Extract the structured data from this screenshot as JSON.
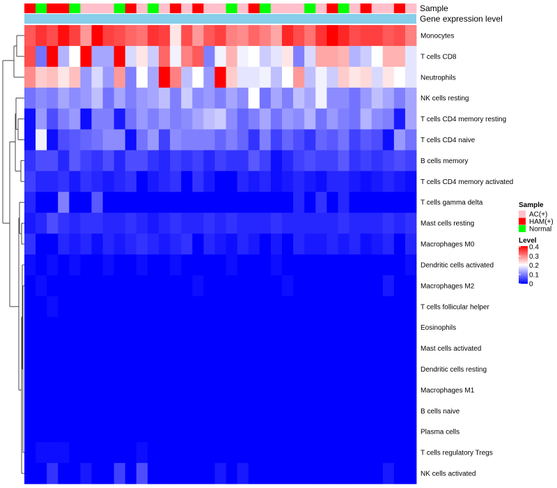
{
  "chart_data": {
    "type": "heatmap",
    "title": "",
    "annotation_rows": [
      "Sample",
      "Gene expression level"
    ],
    "rows": [
      "Monocytes",
      "T cells CD8",
      "Neutrophils",
      "NK cells resting",
      "T cells CD4 memory resting",
      "T cells CD4 naive",
      "B cells memory",
      "T cells CD4 memory activated",
      "T cells gamma delta",
      "Mast cells resting",
      "Macrophages M0",
      "Dendritic cells activated",
      "Macrophages M2",
      "T cells follicular helper",
      "Eosinophils",
      "Mast cells activated",
      "Dendritic cells resting",
      "Macrophages M1",
      "B cells naive",
      "Plasma cells",
      "T cells regulatory  Tregs",
      "NK cells activated"
    ],
    "sample_groups": [
      "HAM(+)",
      "Normal",
      "HAM(+)",
      "HAM(+)",
      "Normal",
      "AC(+)",
      "AC(+)",
      "AC(+)",
      "Normal",
      "HAM(+)",
      "AC(+)",
      "Normal",
      "AC(+)",
      "HAM(+)",
      "AC(+)",
      "HAM(+)",
      "AC(+)",
      "AC(+)",
      "Normal",
      "AC(+)",
      "HAM(+)",
      "Normal",
      "AC(+)",
      "AC(+)",
      "AC(+)",
      "Normal",
      "AC(+)",
      "HAM(+)",
      "Normal",
      "AC(+)",
      "HAM(+)",
      "AC(+)",
      "AC(+)",
      "HAM(+)",
      "AC(+)"
    ],
    "values": [
      [
        0.33,
        0.36,
        0.34,
        0.39,
        0.35,
        0.28,
        0.4,
        0.35,
        0.34,
        0.32,
        0.31,
        0.36,
        0.35,
        0.22,
        0.34,
        0.28,
        0.33,
        0.35,
        0.3,
        0.29,
        0.32,
        0.3,
        0.27,
        0.37,
        0.34,
        0.31,
        0.36,
        0.4,
        0.37,
        0.34,
        0.35,
        0.35,
        0.33,
        0.34,
        0.3
      ],
      [
        0.34,
        0.09,
        0.4,
        0.14,
        0.2,
        0.4,
        0.13,
        0.13,
        0.4,
        0.17,
        0.22,
        0.16,
        0.32,
        0.19,
        0.3,
        0.33,
        0.1,
        0.19,
        0.26,
        0.19,
        0.2,
        0.16,
        0.18,
        0.22,
        0.1,
        0.17,
        0.27,
        0.27,
        0.26,
        0.14,
        0.16,
        0.2,
        0.26,
        0.26,
        0.18
      ],
      [
        0.29,
        0.24,
        0.25,
        0.22,
        0.25,
        0.12,
        0.17,
        0.12,
        0.28,
        0.1,
        0.2,
        0.13,
        0.4,
        0.3,
        0.15,
        0.2,
        0.12,
        0.4,
        0.24,
        0.18,
        0.18,
        0.19,
        0.15,
        0.2,
        0.28,
        0.15,
        0.19,
        0.16,
        0.24,
        0.22,
        0.23,
        0.17,
        0.22,
        0.2,
        0.18
      ],
      [
        0.09,
        0.11,
        0.1,
        0.13,
        0.11,
        0.12,
        0.15,
        0.09,
        0.13,
        0.1,
        0.12,
        0.13,
        0.15,
        0.1,
        0.16,
        0.11,
        0.12,
        0.1,
        0.13,
        0.11,
        0.2,
        0.09,
        0.13,
        0.1,
        0.15,
        0.13,
        0.19,
        0.11,
        0.11,
        0.09,
        0.12,
        0.15,
        0.13,
        0.1,
        0.13
      ],
      [
        0.01,
        0.12,
        0.06,
        0.1,
        0.12,
        0.01,
        0.1,
        0.1,
        0.02,
        0.09,
        0.12,
        0.1,
        0.12,
        0.1,
        0.11,
        0.13,
        0.15,
        0.16,
        0.11,
        0.08,
        0.1,
        0.13,
        0.09,
        0.12,
        0.11,
        0.14,
        0.09,
        0.12,
        0.1,
        0.09,
        0.14,
        0.11,
        0.1,
        0.02,
        0.13
      ],
      [
        0.01,
        0.19,
        0.01,
        0.06,
        0.07,
        0.08,
        0.09,
        0.11,
        0.11,
        0.01,
        0.09,
        0.12,
        0.05,
        0.11,
        0.1,
        0.1,
        0.1,
        0.08,
        0.1,
        0.08,
        0.04,
        0.1,
        0.05,
        0.08,
        0.06,
        0.04,
        0.08,
        0.07,
        0.09,
        0.05,
        0.07,
        0.06,
        0.01,
        0.12,
        0.09
      ],
      [
        0.04,
        0.06,
        0.06,
        0.03,
        0.07,
        0.05,
        0.04,
        0.06,
        0.03,
        0.06,
        0.06,
        0.04,
        0.03,
        0.05,
        0.04,
        0.05,
        0.03,
        0.05,
        0.04,
        0.04,
        0.07,
        0.05,
        0.01,
        0.03,
        0.05,
        0.06,
        0.05,
        0.05,
        0.07,
        0.04,
        0.05,
        0.04,
        0.05,
        0.06,
        0.05
      ],
      [
        0.05,
        0.03,
        0.03,
        0.04,
        0.02,
        0.04,
        0.03,
        0.02,
        0.03,
        0.04,
        0.0,
        0.02,
        0.03,
        0.04,
        0.0,
        0.04,
        0.02,
        0.0,
        0.0,
        0.03,
        0.02,
        0.03,
        0.01,
        0.02,
        0.03,
        0.02,
        0.01,
        0.03,
        0.03,
        0.02,
        0.01,
        0.02,
        0.03,
        0.02,
        0.01
      ],
      [
        0.03,
        0.0,
        0.0,
        0.1,
        0.0,
        0.0,
        0.07,
        0.0,
        0.0,
        0.0,
        0.0,
        0.0,
        0.0,
        0.0,
        0.0,
        0.0,
        0.0,
        0.0,
        0.0,
        0.0,
        0.0,
        0.0,
        0.0,
        0.0,
        0.03,
        0.0,
        0.04,
        0.0,
        0.03,
        0.0,
        0.0,
        0.0,
        0.0,
        0.0,
        0.0
      ],
      [
        0.02,
        0.03,
        0.06,
        0.04,
        0.03,
        0.04,
        0.04,
        0.03,
        0.03,
        0.04,
        0.03,
        0.02,
        0.03,
        0.04,
        0.03,
        0.03,
        0.04,
        0.03,
        0.04,
        0.03,
        0.03,
        0.03,
        0.04,
        0.03,
        0.03,
        0.03,
        0.03,
        0.03,
        0.04,
        0.03,
        0.03,
        0.03,
        0.04,
        0.03,
        0.04
      ],
      [
        0.04,
        0.0,
        0.0,
        0.03,
        0.02,
        0.03,
        0.01,
        0.03,
        0.02,
        0.03,
        0.04,
        0.03,
        0.02,
        0.03,
        0.04,
        0.0,
        0.03,
        0.02,
        0.01,
        0.03,
        0.02,
        0.0,
        0.02,
        0.0,
        0.03,
        0.02,
        0.02,
        0.03,
        0.02,
        0.03,
        0.01,
        0.02,
        0.03,
        0.0,
        0.03
      ],
      [
        0.01,
        0.0,
        0.01,
        0.0,
        0.01,
        0.0,
        0.0,
        0.01,
        0.0,
        0.0,
        0.01,
        0.0,
        0.0,
        0.01,
        0.0,
        0.0,
        0.0,
        0.0,
        0.01,
        0.0,
        0.0,
        0.0,
        0.01,
        0.0,
        0.0,
        0.0,
        0.0,
        0.0,
        0.0,
        0.0,
        0.0,
        0.0,
        0.0,
        0.0,
        0.01
      ],
      [
        0.0,
        0.01,
        0.0,
        0.0,
        0.0,
        0.0,
        0.0,
        0.0,
        0.0,
        0.0,
        0.0,
        0.0,
        0.0,
        0.0,
        0.0,
        0.01,
        0.0,
        0.0,
        0.0,
        0.0,
        0.0,
        0.0,
        0.0,
        0.01,
        0.0,
        0.0,
        0.0,
        0.0,
        0.0,
        0.0,
        0.0,
        0.0,
        0.02,
        0.0,
        0.0
      ],
      [
        0.0,
        0.0,
        0.01,
        0.0,
        0.0,
        0.0,
        0.0,
        0.0,
        0.0,
        0.0,
        0.0,
        0.0,
        0.0,
        0.0,
        0.0,
        0.0,
        0.0,
        0.0,
        0.0,
        0.0,
        0.0,
        0.0,
        0.0,
        0.0,
        0.0,
        0.0,
        0.0,
        0.0,
        0.0,
        0.0,
        0.0,
        0.0,
        0.0,
        0.0,
        0.0
      ],
      [
        0.0,
        0.0,
        0.0,
        0.0,
        0.0,
        0.0,
        0.0,
        0.0,
        0.0,
        0.0,
        0.0,
        0.0,
        0.0,
        0.0,
        0.0,
        0.0,
        0.0,
        0.0,
        0.0,
        0.0,
        0.0,
        0.0,
        0.0,
        0.0,
        0.0,
        0.0,
        0.0,
        0.0,
        0.0,
        0.0,
        0.0,
        0.0,
        0.0,
        0.0,
        0.0
      ],
      [
        0.0,
        0.0,
        0.0,
        0.0,
        0.0,
        0.0,
        0.0,
        0.0,
        0.0,
        0.0,
        0.0,
        0.0,
        0.0,
        0.0,
        0.0,
        0.0,
        0.0,
        0.0,
        0.0,
        0.0,
        0.0,
        0.0,
        0.0,
        0.0,
        0.0,
        0.0,
        0.0,
        0.0,
        0.0,
        0.0,
        0.0,
        0.0,
        0.0,
        0.0,
        0.0
      ],
      [
        0.0,
        0.0,
        0.0,
        0.0,
        0.0,
        0.0,
        0.0,
        0.0,
        0.0,
        0.0,
        0.0,
        0.0,
        0.0,
        0.0,
        0.0,
        0.0,
        0.0,
        0.0,
        0.0,
        0.0,
        0.0,
        0.0,
        0.0,
        0.0,
        0.0,
        0.0,
        0.0,
        0.0,
        0.0,
        0.0,
        0.0,
        0.0,
        0.0,
        0.0,
        0.0
      ],
      [
        0.0,
        0.0,
        0.0,
        0.0,
        0.0,
        0.0,
        0.0,
        0.0,
        0.0,
        0.0,
        0.0,
        0.0,
        0.0,
        0.0,
        0.0,
        0.0,
        0.0,
        0.0,
        0.0,
        0.0,
        0.0,
        0.0,
        0.0,
        0.0,
        0.0,
        0.0,
        0.0,
        0.0,
        0.0,
        0.0,
        0.0,
        0.0,
        0.0,
        0.0,
        0.0
      ],
      [
        0.0,
        0.0,
        0.0,
        0.0,
        0.0,
        0.0,
        0.0,
        0.0,
        0.0,
        0.0,
        0.0,
        0.0,
        0.0,
        0.0,
        0.0,
        0.0,
        0.0,
        0.0,
        0.0,
        0.0,
        0.0,
        0.0,
        0.0,
        0.0,
        0.0,
        0.0,
        0.0,
        0.0,
        0.0,
        0.0,
        0.0,
        0.0,
        0.0,
        0.0,
        0.0
      ],
      [
        0.0,
        0.0,
        0.0,
        0.0,
        0.0,
        0.0,
        0.0,
        0.0,
        0.0,
        0.0,
        0.0,
        0.0,
        0.0,
        0.0,
        0.0,
        0.0,
        0.0,
        0.0,
        0.0,
        0.0,
        0.0,
        0.0,
        0.0,
        0.0,
        0.0,
        0.0,
        0.0,
        0.0,
        0.0,
        0.0,
        0.0,
        0.0,
        0.0,
        0.0,
        0.0
      ],
      [
        0.0,
        0.01,
        0.01,
        0.01,
        0.0,
        0.0,
        0.0,
        0.0,
        0.0,
        0.0,
        0.01,
        0.0,
        0.0,
        0.0,
        0.0,
        0.0,
        0.0,
        0.0,
        0.0,
        0.0,
        0.0,
        0.0,
        0.0,
        0.0,
        0.0,
        0.0,
        0.0,
        0.0,
        0.0,
        0.0,
        0.0,
        0.0,
        0.0,
        0.0,
        0.0
      ],
      [
        0.0,
        0.0,
        0.04,
        0.0,
        0.0,
        0.02,
        0.0,
        0.0,
        0.05,
        0.0,
        0.06,
        0.0,
        0.0,
        0.0,
        0.0,
        0.0,
        0.0,
        0.02,
        0.0,
        0.02,
        0.0,
        0.0,
        0.0,
        0.0,
        0.0,
        0.0,
        0.0,
        0.0,
        0.0,
        0.0,
        0.0,
        0.0,
        0.02,
        0.0,
        0.0
      ]
    ],
    "color_scale": {
      "min": 0,
      "mid": 0.2,
      "max": 0.4,
      "low": "#0000FF",
      "middle": "#FFFFFF",
      "high": "#FF0000"
    },
    "legend": {
      "sample_title": "Sample",
      "sample_entries": [
        {
          "label": "AC(+)",
          "color": "#FFC0CB"
        },
        {
          "label": "HAM(+)",
          "color": "#FF0000"
        },
        {
          "label": "Normal",
          "color": "#00FF00"
        }
      ],
      "level_title": "Level",
      "level_ticks": [
        "0.4",
        "0.3",
        "0.2",
        "0.1",
        "0"
      ],
      "level_tick_values": [
        0.4,
        0.3,
        0.2,
        0.1,
        0
      ]
    },
    "gene_expression_color": "#87CEEB"
  }
}
